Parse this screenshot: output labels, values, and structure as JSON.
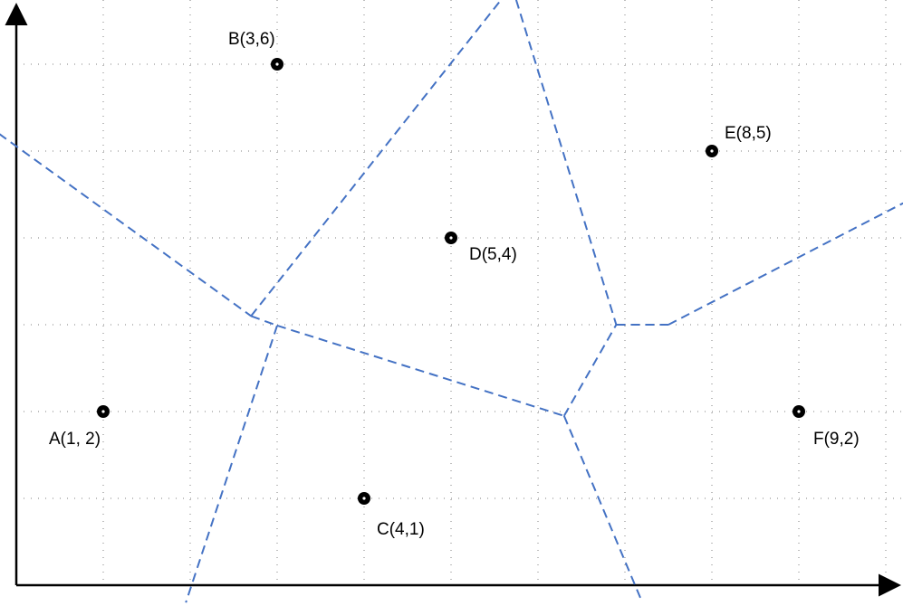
{
  "diagram": {
    "type": "voronoi",
    "x_range": [
      0,
      10
    ],
    "y_range": [
      0,
      7
    ],
    "grid": "dotted",
    "colors": {
      "edge": "#4472c4",
      "point": "#000000",
      "grid": "#7f7f7f",
      "axis": "#000000"
    },
    "points": [
      {
        "id": "A",
        "label": "A(1, 2)",
        "x": 1,
        "y": 2
      },
      {
        "id": "B",
        "label": "B(3,6)",
        "x": 3,
        "y": 6
      },
      {
        "id": "C",
        "label": "C(4,1)",
        "x": 4,
        "y": 1
      },
      {
        "id": "D",
        "label": "D(5,4)",
        "x": 5,
        "y": 4
      },
      {
        "id": "E",
        "label": "E(8,5)",
        "x": 8,
        "y": 5
      },
      {
        "id": "F",
        "label": "F(9,2)",
        "x": 9,
        "y": 2
      }
    ],
    "voronoi_edges": [
      {
        "name": "edge-ab-left",
        "from": [
          -0.2,
          5.2
        ],
        "to": [
          2.7,
          3.1
        ]
      },
      {
        "name": "edge-bd",
        "from": [
          2.7,
          3.1
        ],
        "to": [
          5.7,
          6.9
        ]
      },
      {
        "name": "edge-ab-ac",
        "from": [
          2.7,
          3.1
        ],
        "to": [
          3.0,
          2.99
        ]
      },
      {
        "name": "edge-ac",
        "from": [
          3.0,
          2.99
        ],
        "to": [
          1.95,
          -0.2
        ]
      },
      {
        "name": "edge-cd",
        "from": [
          3.0,
          2.99
        ],
        "to": [
          6.3,
          1.95
        ]
      },
      {
        "name": "edge-cf",
        "from": [
          6.3,
          1.95
        ],
        "to": [
          7.2,
          -0.2
        ]
      },
      {
        "name": "edge-df",
        "from": [
          6.3,
          1.95
        ],
        "to": [
          6.9,
          3.0
        ]
      },
      {
        "name": "edge-de",
        "from": [
          5.7,
          6.9
        ],
        "to": [
          6.9,
          3.0
        ]
      },
      {
        "name": "edge-ef-mid",
        "from": [
          6.9,
          3.0
        ],
        "to": [
          7.5,
          3.0
        ]
      },
      {
        "name": "edge-ef",
        "from": [
          7.5,
          3.0
        ],
        "to": [
          10.2,
          4.4
        ]
      }
    ]
  }
}
